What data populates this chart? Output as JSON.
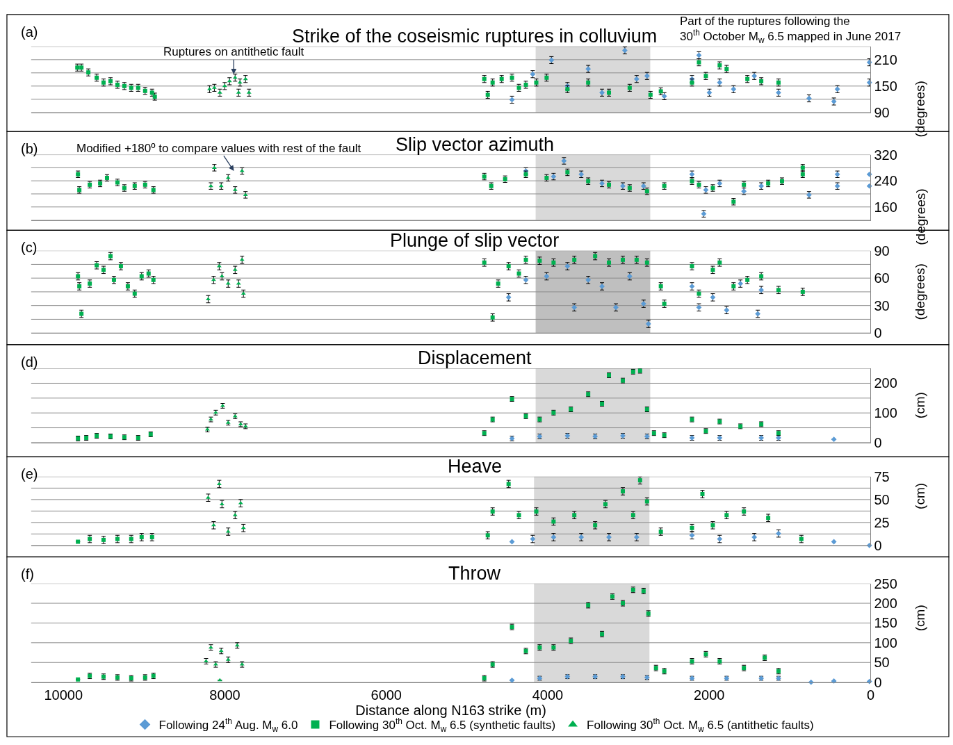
{
  "chart_data": [
    {
      "type": "scatter",
      "title": "Strike of the coseismic ruptures in colluvium",
      "ylabel": "(degrees)",
      "annotations": [
        "(a)",
        {
          "text": "Ruptures on antithetic fault",
          "x": 7890,
          "y": 177
        },
        "Part of the ruptures following the\n30$^{th}$ October M$_{w}$ 6.5 mapped in June 2017"
      ],
      "xlim": [
        10400,
        0
      ],
      "xticks": [
        10000,
        8000,
        6000,
        4000,
        2000,
        0
      ],
      "ylim": [
        90,
        240
      ],
      "yticks": [
        90,
        {
          "value": 120,
          "label": null
        },
        150,
        {
          "value": 180,
          "label": null
        },
        210,
        {
          "value": 240,
          "label": null
        }
      ],
      "grid": "y",
      "legend": false,
      "tick_labels": "y",
      "bands": [
        {
          "axis": "x",
          "from": 4150,
          "to": 2730,
          "color": "#d9d9d9"
        }
      ],
      "series": [
        {
          "color": "#5b9bd5",
          "marker": "diamond",
          "x": [
            4443,
            4186,
            3954,
            3756,
            3499,
            3328,
            3045,
            2899,
            2770,
            2556,
            2213,
            2127,
            1998,
            1870,
            1698,
            1441,
            1141,
            763,
            455,
            412,
            15,
            15
          ],
          "values": [
            119,
            177,
            209,
            150,
            189,
            135,
            231,
            166,
            173,
            127,
            166,
            220,
            135,
            158,
            143,
            173,
            135,
            122,
            115,
            143,
            204,
            158
          ],
          "errors": [
            8,
            8,
            8,
            8,
            8,
            8,
            8,
            8,
            8,
            8,
            8,
            8,
            8,
            8,
            8,
            8,
            8,
            8,
            8,
            8,
            8,
            8
          ]
        },
        {
          "color": "#00b050",
          "marker": "square",
          "x": [
            9828,
            9777,
            9691,
            9588,
            9503,
            9417,
            9331,
            9245,
            9160,
            9074,
            8988,
            8902,
            8868,
            4786,
            4743,
            4683,
            4571,
            4443,
            4357,
            4271,
            4142,
            4014,
            3756,
            3499,
            3242,
            2985,
            2727,
            2599,
            2213,
            2127,
            2041,
            1870,
            1784,
            1527,
            1355,
            1141
          ],
          "values": [
            192,
            192,
            181,
            169,
            158,
            161,
            153,
            150,
            146,
            146,
            139,
            135,
            126,
            166,
            130,
            158,
            166,
            169,
            146,
            153,
            158,
            169,
            143,
            158,
            135,
            146,
            130,
            138,
            158,
            204,
            173,
            197,
            189,
            166,
            161,
            158
          ],
          "errors": [
            8,
            8,
            8,
            8,
            8,
            8,
            8,
            8,
            8,
            8,
            8,
            8,
            8,
            8,
            8,
            8,
            8,
            8,
            8,
            8,
            8,
            8,
            8,
            8,
            8,
            8,
            8,
            8,
            8,
            8,
            8,
            8,
            8,
            8,
            8,
            8
          ]
        },
        {
          "color": "#00b050",
          "marker": "triangle",
          "x": [
            8190,
            8130,
            8062,
            8002,
            7942,
            7873,
            7813,
            7744,
            7701,
            7830
          ],
          "values": [
            143,
            146,
            135,
            150,
            161,
            169,
            158,
            166,
            135,
            135
          ],
          "errors": [
            8,
            8,
            8,
            8,
            8,
            8,
            8,
            8,
            8,
            8
          ]
        }
      ]
    },
    {
      "type": "scatter",
      "title": "Slip vector azimuth",
      "ylabel": "(degrees)",
      "annotations": [
        "(b)",
        "Modified +180º to compare values with rest of the fault"
      ],
      "xlim": [
        10400,
        0
      ],
      "xticks": [
        10000,
        8000,
        6000,
        4000,
        2000,
        0
      ],
      "ylim": [
        120,
        320
      ],
      "yticks": [
        {
          "value": 120,
          "label": null
        },
        160,
        {
          "value": 200,
          "label": null
        },
        240,
        {
          "value": 280,
          "label": null
        },
        320
      ],
      "grid": "y",
      "legend": false,
      "tick_labels": "y",
      "bands": [
        {
          "axis": "x",
          "from": 4150,
          "to": 2730,
          "color": "#d9d9d9"
        }
      ],
      "series": [
        {
          "color": "#5b9bd5",
          "marker": "diamond",
          "x": [
            4271,
            3928,
            3799,
            3585,
            3328,
            3070,
            2813,
            2213,
            2067,
            2041,
            1870,
            1570,
            1355,
            763,
            412,
            412,
            15,
            15
          ],
          "values": [
            270,
            253,
            301,
            260,
            232,
            224,
            224,
            260,
            139,
            212,
            232,
            208,
            224,
            197,
            260,
            224,
            260,
            224
          ],
          "errors": [
            10,
            10,
            10,
            10,
            10,
            10,
            10,
            10,
            10,
            10,
            10,
            10,
            10,
            10,
            10,
            10,
            null,
            null
          ]
        },
        {
          "color": "#00b050",
          "marker": "square",
          "x": [
            9820,
            9803,
            9674,
            9545,
            9460,
            9331,
            9245,
            9117,
            8988,
            8885,
            4786,
            4700,
            4528,
            4271,
            4014,
            3756,
            3499,
            3242,
            2985,
            2770,
            2556,
            2213,
            2127,
            1955,
            1698,
            1570,
            1269,
            1098,
            841,
            841
          ],
          "values": [
            260,
            212,
            228,
            232,
            249,
            235,
            218,
            224,
            228,
            212,
            253,
            224,
            245,
            260,
            249,
            266,
            239,
            228,
            218,
            208,
            224,
            239,
            228,
            218,
            176,
            228,
            232,
            239,
            280,
            260
          ],
          "errors": [
            10,
            10,
            10,
            10,
            10,
            10,
            10,
            10,
            10,
            10,
            10,
            10,
            10,
            10,
            10,
            10,
            10,
            10,
            10,
            10,
            10,
            10,
            10,
            10,
            10,
            10,
            10,
            10,
            10,
            10
          ]
        },
        {
          "color": "#00b050",
          "marker": "triangle",
          "x": [
            8173,
            8130,
            8045,
            7959,
            7873,
            7787,
            7744
          ],
          "values": [
            224,
            280,
            224,
            249,
            212,
            270,
            197
          ],
          "errors": [
            10,
            10,
            10,
            10,
            10,
            10,
            10
          ]
        }
      ]
    },
    {
      "type": "scatter",
      "title": "Plunge of slip vector",
      "ylabel": "(degrees)",
      "annotations": [
        "(c)"
      ],
      "xlim": [
        10400,
        0
      ],
      "xticks": [
        10000,
        8000,
        6000,
        4000,
        2000,
        0
      ],
      "ylim": [
        0,
        90
      ],
      "yticks": [
        0,
        {
          "value": 15,
          "label": null
        },
        30,
        {
          "value": 45,
          "label": null
        },
        60,
        {
          "value": 75,
          "label": null
        },
        90
      ],
      "grid": "y",
      "legend": false,
      "tick_labels": "y",
      "bands": [
        {
          "axis": "x",
          "from": 4150,
          "to": 2730,
          "color": "#bfbfbf"
        }
      ],
      "series": [
        {
          "color": "#5b9bd5",
          "marker": "diamond",
          "x": [
            4485,
            4271,
            4014,
            3756,
            3671,
            3499,
            3328,
            3156,
            2985,
            2813,
            2753,
            2213,
            2127,
            1955,
            1784,
            1613,
            1398,
            1355
          ],
          "values": [
            39,
            58,
            62,
            73,
            28,
            58,
            51,
            28,
            62,
            32,
            10,
            51,
            28,
            39,
            25,
            54,
            21,
            47
          ],
          "errors": [
            4,
            4,
            4,
            4,
            4,
            4,
            4,
            4,
            4,
            4,
            4,
            4,
            4,
            4,
            4,
            4,
            4,
            4
          ]
        },
        {
          "color": "#00b050",
          "marker": "square",
          "x": [
            9820,
            9803,
            9777,
            9674,
            9588,
            9503,
            9417,
            9374,
            9288,
            9202,
            9117,
            9031,
            8945,
            8885,
            4786,
            4683,
            4614,
            4485,
            4357,
            4271,
            4100,
            3928,
            3671,
            3413,
            3242,
            3070,
            2899,
            2770,
            2599,
            2556,
            2213,
            2127,
            1955,
            1870,
            1698,
            1527,
            1355,
            1141,
            841
          ],
          "values": [
            62,
            51,
            21,
            54,
            74,
            69,
            84,
            58,
            73,
            51,
            43,
            62,
            65,
            58,
            77,
            17,
            54,
            73,
            65,
            80,
            79,
            77,
            80,
            84,
            77,
            80,
            80,
            77,
            51,
            32,
            73,
            43,
            69,
            77,
            51,
            58,
            62,
            47,
            45
          ],
          "errors": [
            4,
            4,
            4,
            4,
            4,
            4,
            4,
            4,
            4,
            4,
            4,
            4,
            4,
            4,
            4,
            4,
            4,
            4,
            4,
            4,
            4,
            4,
            4,
            4,
            4,
            4,
            4,
            4,
            4,
            4,
            4,
            4,
            4,
            4,
            4,
            4,
            4,
            4,
            4
          ]
        },
        {
          "color": "#00b050",
          "marker": "triangle",
          "x": [
            8207,
            8139,
            8070,
            8036,
            7959,
            7873,
            7787,
            7770,
            7830
          ],
          "values": [
            37,
            58,
            73,
            62,
            54,
            69,
            80,
            43,
            54
          ],
          "errors": [
            4,
            4,
            4,
            4,
            4,
            4,
            4,
            4,
            4
          ]
        }
      ]
    },
    {
      "type": "scatter",
      "title": "Displacement",
      "ylabel": "(cm)",
      "annotations": [
        "(d)"
      ],
      "xlim": [
        10400,
        0
      ],
      "xticks": [
        10000,
        8000,
        6000,
        4000,
        2000,
        0
      ],
      "ylim": [
        0,
        250
      ],
      "yticks": [
        0,
        {
          "value": 50,
          "label": null
        },
        100,
        {
          "value": 150,
          "label": null
        },
        200,
        {
          "value": 250,
          "label": null
        }
      ],
      "grid": "y",
      "legend": false,
      "tick_labels": "y",
      "bands": [
        {
          "axis": "x",
          "from": 4150,
          "to": 2730,
          "color": "#d9d9d9"
        }
      ],
      "series": [
        {
          "color": "#5b9bd5",
          "marker": "diamond",
          "x": [
            4443,
            4100,
            3756,
            3413,
            3070,
            2770,
            2213,
            1870,
            1355,
            1141,
            455
          ],
          "values": [
            14,
            21,
            23,
            21,
            23,
            21,
            16,
            16,
            16,
            16,
            11
          ],
          "errors": [
            8,
            8,
            8,
            8,
            8,
            8,
            8,
            8,
            8,
            8,
            null
          ]
        },
        {
          "color": "#00b050",
          "marker": "square",
          "x": [
            9820,
            9717,
            9588,
            9417,
            9245,
            9074,
            8919,
            4786,
            4683,
            4443,
            4271,
            4100,
            3928,
            3714,
            3499,
            3328,
            3242,
            3070,
            2942,
            2856,
            2770,
            2684,
            2556,
            2213,
            2041,
            1870,
            1613,
            1355,
            1141
          ],
          "values": [
            14,
            16,
            23,
            21,
            18,
            16,
            28,
            32,
            78,
            147,
            89,
            78,
            101,
            112,
            163,
            131,
            227,
            209,
            239,
            242,
            112,
            32,
            25,
            78,
            39,
            71,
            55,
            62,
            32
          ],
          "errors": [
            8,
            8,
            8,
            8,
            8,
            8,
            8,
            8,
            8,
            8,
            8,
            8,
            8,
            8,
            8,
            8,
            8,
            8,
            8,
            8,
            8,
            8,
            8,
            8,
            8,
            8,
            8,
            8,
            8
          ]
        },
        {
          "color": "#00b050",
          "marker": "triangle",
          "x": [
            8216,
            8173,
            8113,
            8027,
            7959,
            7873,
            7804,
            7744
          ],
          "values": [
            44,
            78,
            101,
            124,
            67,
            89,
            62,
            55
          ],
          "errors": [
            8,
            8,
            8,
            8,
            8,
            8,
            8,
            8
          ]
        }
      ]
    },
    {
      "type": "scatter",
      "title": "Heave",
      "ylabel": "(cm)",
      "annotations": [
        "(e)"
      ],
      "xlim": [
        10400,
        0
      ],
      "xticks": [
        10000,
        8000,
        6000,
        4000,
        2000,
        0
      ],
      "ylim": [
        0,
        75
      ],
      "yticks": [
        0,
        {
          "value": 12.5,
          "label": null
        },
        25,
        {
          "value": 37.5,
          "label": null
        },
        50,
        {
          "value": 62.5,
          "label": null
        },
        75
      ],
      "grid": "y",
      "legend": false,
      "tick_labels": "y",
      "bands": [
        {
          "axis": "x",
          "from": 4170,
          "to": 2740,
          "color": "#d9d9d9"
        }
      ],
      "series": [
        {
          "color": "#5b9bd5",
          "marker": "diamond",
          "x": [
            4443,
            4186,
            3928,
            3585,
            3242,
            2899,
            2213,
            1870,
            1441,
            1141,
            455,
            15
          ],
          "values": [
            4,
            7,
            9,
            9,
            9,
            9,
            11,
            7,
            9,
            13,
            4,
            0
          ],
          "errors": [
            null,
            4,
            4,
            4,
            4,
            4,
            4,
            4,
            4,
            4,
            null,
            null
          ]
        },
        {
          "color": "#00b050",
          "marker": "square",
          "x": [
            9820,
            9674,
            9503,
            9331,
            9160,
            9031,
            8902,
            4743,
            4683,
            4485,
            4357,
            4142,
            3928,
            3671,
            3413,
            3285,
            3070,
            2942,
            2856,
            2770,
            2599,
            2213,
            2084,
            1955,
            1784,
            1570,
            1269,
            858
          ],
          "values": [
            4,
            7,
            6,
            7,
            7,
            9,
            9,
            11,
            37,
            67,
            33,
            37,
            26,
            33,
            22,
            45,
            59,
            33,
            71,
            48,
            15,
            19,
            56,
            22,
            33,
            37,
            30,
            7
          ],
          "errors": [
            null,
            4,
            4,
            4,
            4,
            4,
            4,
            4,
            4,
            4,
            4,
            4,
            4,
            4,
            4,
            4,
            4,
            4,
            4,
            4,
            4,
            4,
            4,
            4,
            4,
            4,
            4,
            4
          ]
        },
        {
          "color": "#00b050",
          "marker": "triangle",
          "x": [
            8207,
            8139,
            8070,
            8036,
            7959,
            7873,
            7804,
            7770
          ],
          "values": [
            52,
            22,
            67,
            45,
            15,
            33,
            46,
            19
          ],
          "errors": [
            4,
            4,
            4,
            4,
            4,
            4,
            4,
            4
          ]
        }
      ]
    },
    {
      "type": "scatter",
      "title": "Throw",
      "ylabel": "(cm)",
      "xlabel": "Distance along N163 strike (m)",
      "annotations": [
        "(f)"
      ],
      "xlim": [
        10400,
        0
      ],
      "xticks": [
        10000,
        8000,
        6000,
        4000,
        2000,
        0
      ],
      "ylim": [
        0,
        250
      ],
      "yticks": [
        0,
        50,
        100,
        150,
        200,
        250
      ],
      "grid": "y",
      "legend": "bottom",
      "bands": [
        {
          "axis": "x",
          "from": 4170,
          "to": 2740,
          "color": "#d9d9d9"
        }
      ],
      "series": [
        {
          "name": "Following 24$^{th}$ Aug. M$_{w}$ 6.0",
          "color": "#5b9bd5",
          "marker": "diamond",
          "x": [
            4443,
            4100,
            3756,
            3413,
            3070,
            2770,
            2213,
            1784,
            1355,
            1141,
            738,
            455,
            15
          ],
          "values": [
            5,
            10,
            14,
            14,
            14,
            12,
            10,
            10,
            10,
            10,
            0,
            3,
            2
          ],
          "errors": [
            null,
            5,
            5,
            5,
            5,
            5,
            5,
            5,
            5,
            5,
            null,
            null,
            null
          ]
        },
        {
          "name": "Following 30$^{th}$ Oct. M$_{w}$ 6.5 (synthetic faults)",
          "color": "#00b050",
          "marker": "square",
          "x": [
            9820,
            9674,
            9503,
            9331,
            9160,
            8988,
            8885,
            4786,
            4683,
            4443,
            4271,
            4100,
            3928,
            3714,
            3499,
            3328,
            3199,
            3070,
            2942,
            2813,
            2753,
            2659,
            2556,
            2213,
            2041,
            1870,
            1570,
            1312,
            1141
          ],
          "values": [
            7,
            16,
            14,
            12,
            10,
            12,
            16,
            10,
            45,
            140,
            79,
            88,
            88,
            105,
            195,
            122,
            217,
            200,
            234,
            231,
            174,
            36,
            28,
            53,
            71,
            53,
            36,
            62,
            28
          ],
          "errors": [
            null,
            7,
            7,
            7,
            7,
            7,
            7,
            7,
            7,
            7,
            7,
            7,
            7,
            7,
            7,
            7,
            7,
            7,
            7,
            7,
            7,
            7,
            7,
            7,
            7,
            7,
            7,
            7,
            7
          ]
        },
        {
          "name": "Following 30$^{th}$ Oct. M$_{w}$ 6.5 (antithetic faults)",
          "color": "#00b050",
          "marker": "triangle",
          "x": [
            8233,
            8173,
            8113,
            8045,
            7959,
            7847,
            7787,
            8062
          ],
          "values": [
            53,
            88,
            45,
            79,
            57,
            93,
            45,
            5
          ],
          "errors": [
            7,
            7,
            7,
            7,
            7,
            7,
            7,
            null
          ]
        }
      ]
    }
  ]
}
